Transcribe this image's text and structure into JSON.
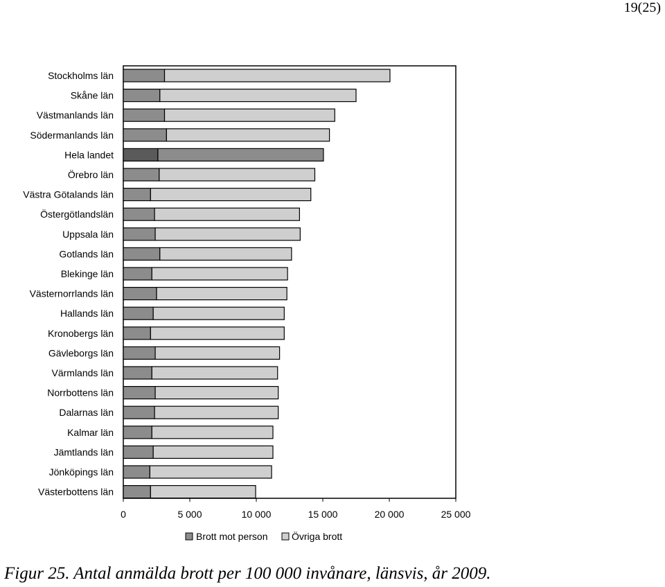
{
  "page_number": "19(25)",
  "caption": "Figur 25. Antal anmälda brott per 100 000 invånare, länsvis, år 2009.",
  "colors": {
    "person": "#8c8c8c",
    "person_highlight": "#5a5a5a",
    "ovriga": "#cfcfcf",
    "ovriga_highlight": "#8c8c8c"
  },
  "chart_data": {
    "type": "bar",
    "orientation": "horizontal",
    "stacked": true,
    "title": "",
    "xlabel": "",
    "ylabel": "",
    "xlim": [
      0,
      25000
    ],
    "x_ticks": [
      0,
      5000,
      10000,
      15000,
      20000,
      25000
    ],
    "x_tick_labels": [
      "0",
      "5 000",
      "10 000",
      "15 000",
      "20 000",
      "25 000"
    ],
    "grid": false,
    "legend_position": "bottom",
    "highlight_category": "Hela landet",
    "categories": [
      "Stockholms län",
      "Skåne län",
      "Västmanlands län",
      "Södermanlands län",
      "Hela landet",
      "Örebro län",
      "Västra Götalands län",
      "Östergötlandslän",
      "Uppsala län",
      "Gotlands län",
      "Blekinge län",
      "Västernorrlands län",
      "Hallands län",
      "Kronobergs län",
      "Gävleborgs län",
      "Värmlands län",
      "Norrbottens län",
      "Dalarnas län",
      "Kalmar län",
      "Jämtlands län",
      "Jönköpings län",
      "Västerbottens län"
    ],
    "series": [
      {
        "name": "Brott mot person",
        "values": [
          3100,
          2750,
          3100,
          3250,
          2600,
          2700,
          2050,
          2350,
          2400,
          2750,
          2150,
          2500,
          2250,
          2050,
          2400,
          2150,
          2400,
          2350,
          2150,
          2250,
          2000,
          2050
        ]
      },
      {
        "name": "Övriga brott",
        "values": [
          16950,
          14750,
          12800,
          12250,
          12450,
          11700,
          12050,
          10900,
          10900,
          9900,
          10200,
          9800,
          9850,
          10050,
          9350,
          9450,
          9250,
          9300,
          9100,
          9000,
          9150,
          7900
        ]
      }
    ]
  }
}
